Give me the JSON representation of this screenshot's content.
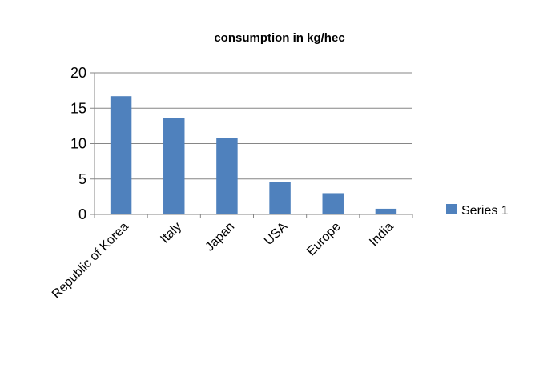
{
  "chart_data": {
    "type": "bar",
    "title": "consumption in kg/hec",
    "xlabel": "",
    "ylabel": "",
    "categories": [
      "Republic of Korea",
      "Italy",
      "Japan",
      "USA",
      "Europe",
      "India"
    ],
    "series": [
      {
        "name": "Series 1",
        "values": [
          16.7,
          13.6,
          10.8,
          4.6,
          3.0,
          0.8
        ]
      }
    ],
    "ylim": [
      0,
      20
    ],
    "yticks": [
      "0",
      "5",
      "10",
      "15",
      "20"
    ],
    "grid": true,
    "legend": "right",
    "colors": {
      "bar": "#4f81bd",
      "grid": "#868686",
      "axis": "#868686"
    }
  }
}
